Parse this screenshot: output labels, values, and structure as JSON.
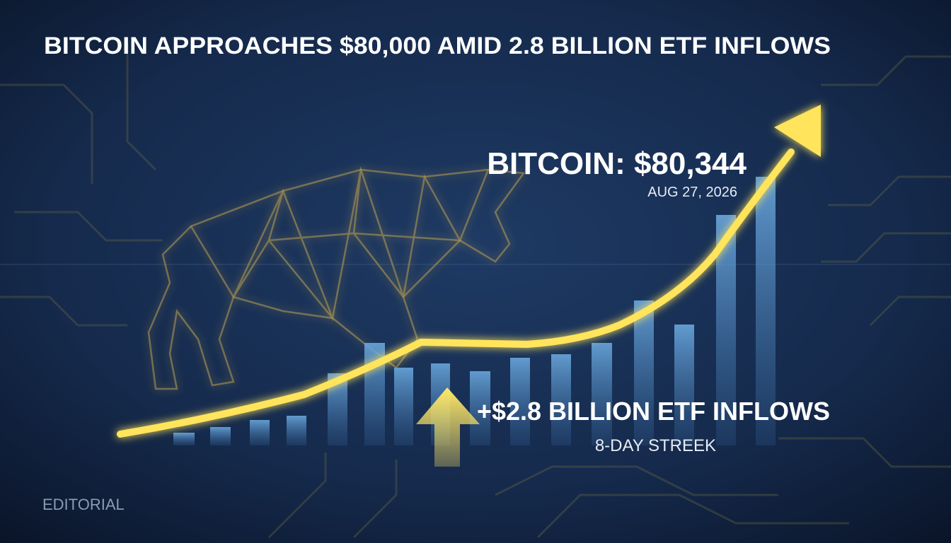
{
  "headline": "BITCOIN APPROACHES $80,000 AMID 2.8 BILLION ETF INFLOWS",
  "price": {
    "label": "BITCOIN: $80,344",
    "date": "AUG 27, 2026"
  },
  "inflows": {
    "label": "+$2.8 BILLION ETF INFLOWS",
    "note": "8-DAY STREEK"
  },
  "tag": "EDITORIAL"
}
